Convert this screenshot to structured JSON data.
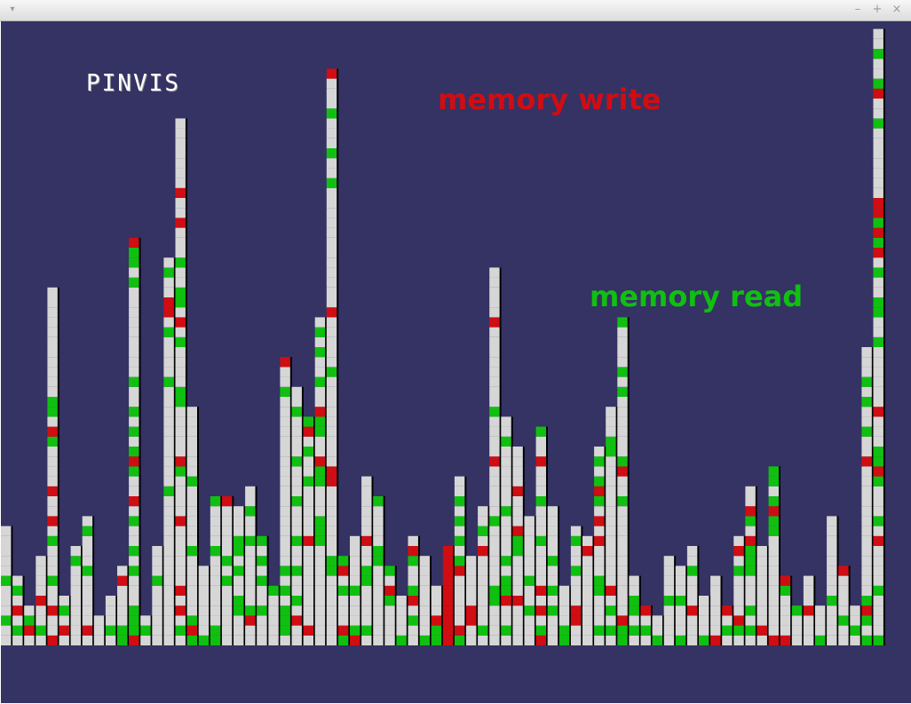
{
  "window": {
    "menu_icon": "chevron-down-icon",
    "minimize_glyph": "–",
    "maximize_glyph": "+",
    "close_glyph": "×"
  },
  "app": {
    "title": "PINVIS"
  },
  "labels": {
    "write": "memory write",
    "read": "memory read"
  },
  "colors": {
    "background": "#353264",
    "memory_other": "#d6d6d6",
    "memory_write": "#d00d12",
    "memory_read": "#10c010"
  },
  "chart_data": {
    "type": "bar",
    "description_of_bins": "column heights (number of blocks of memory activity per column)",
    "column_heights": [
      12,
      7,
      4,
      9,
      36,
      5,
      10,
      13,
      3,
      5,
      8,
      41,
      3,
      10,
      39,
      53,
      24,
      8,
      15,
      15,
      14,
      16,
      11,
      6,
      29,
      26,
      23,
      33,
      58,
      9,
      11,
      17,
      15,
      8,
      5,
      11,
      9,
      6,
      10,
      17,
      9,
      14,
      38,
      23,
      20,
      13,
      22,
      14,
      6,
      12,
      11,
      20,
      24,
      33,
      7,
      4,
      3,
      9,
      8,
      10,
      5,
      7,
      4,
      11,
      16,
      10,
      18,
      7,
      4,
      7,
      4,
      13,
      8,
      4,
      30,
      62
    ],
    "peak_write_column": 38,
    "peak_read_column": 52
  }
}
